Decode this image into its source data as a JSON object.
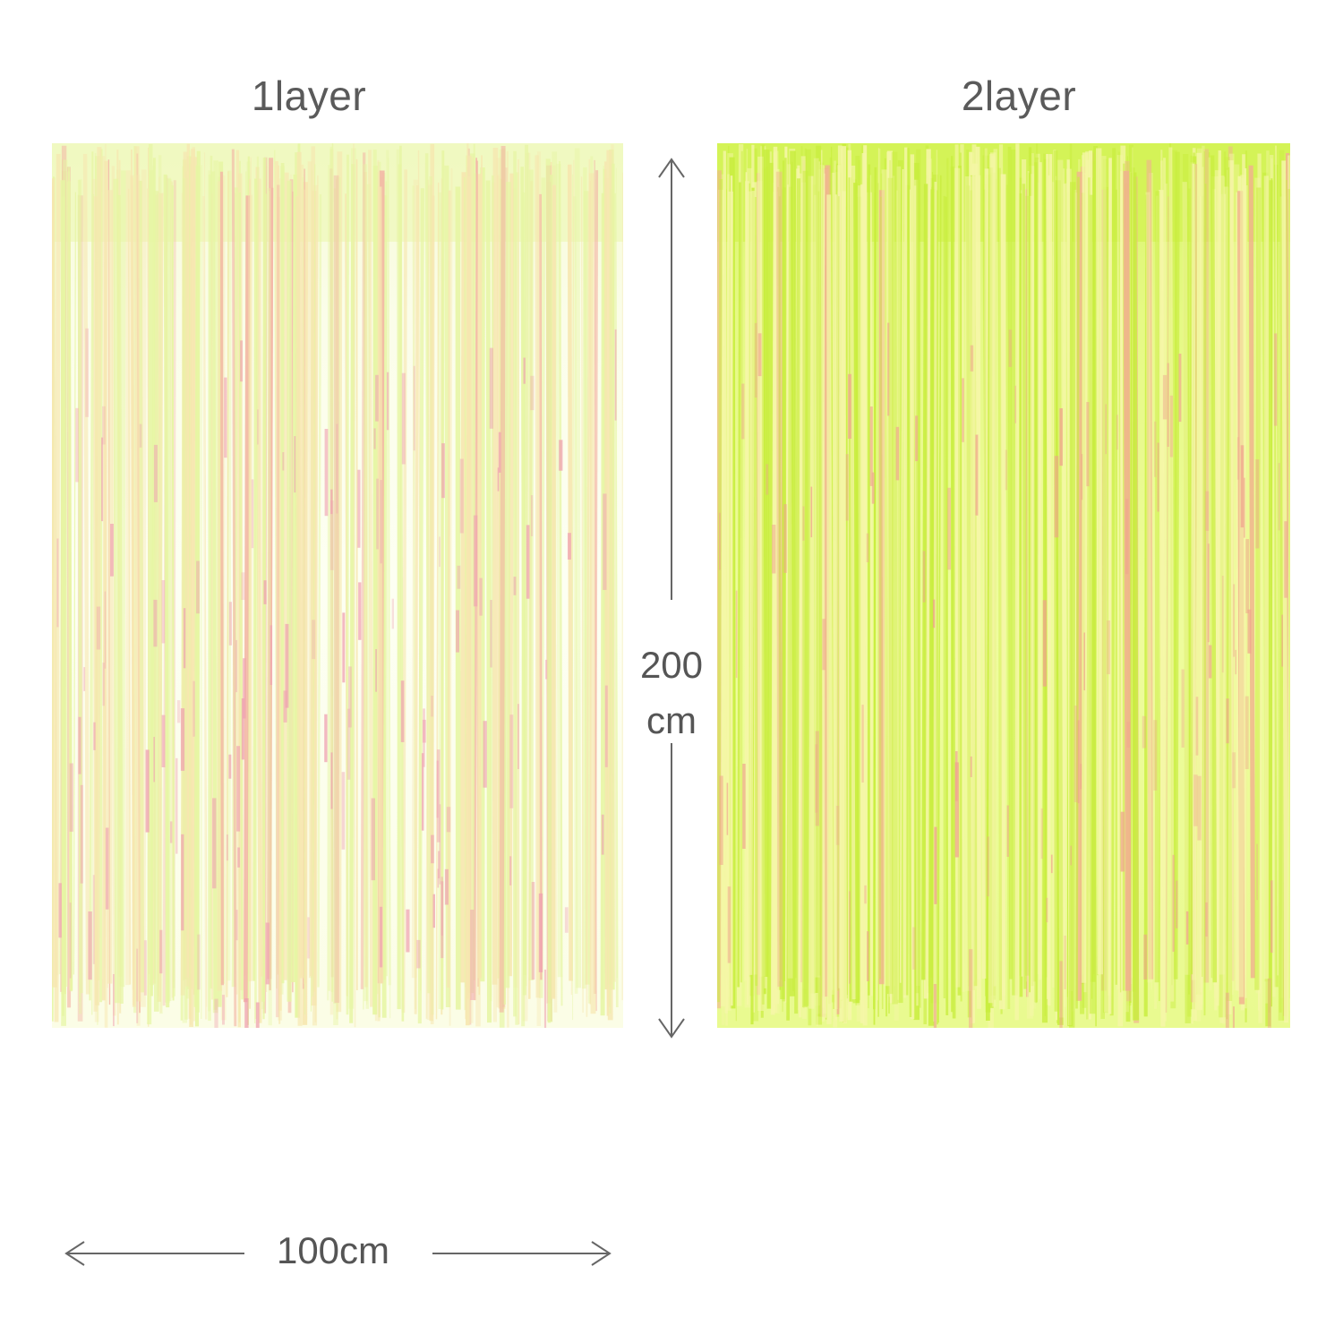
{
  "labels": {
    "left": "1layer",
    "right": "2layer"
  },
  "dimensions": {
    "height_value": "200",
    "height_unit": "cm",
    "width": "100cm"
  },
  "colors": {
    "text": "#555555",
    "curtain_light": "#f4fbd0",
    "curtain_bright": "#dcf76c",
    "iridescent_pink": "#f3a6b0",
    "arrow": "#666666"
  }
}
